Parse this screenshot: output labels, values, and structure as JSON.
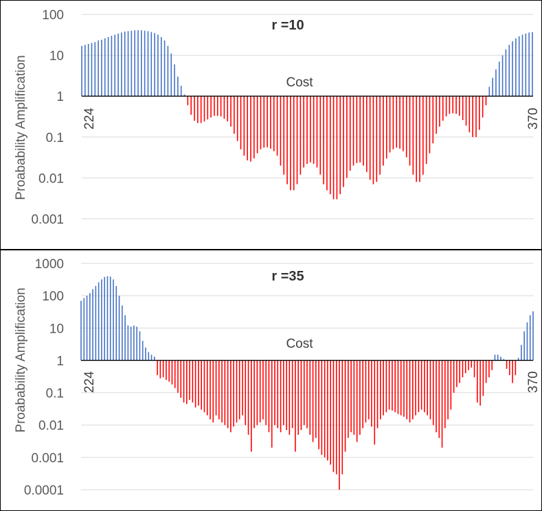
{
  "chart_data": [
    {
      "type": "bar",
      "title": "r =10",
      "xlabel": "Cost",
      "ylabel": "Proabability Amplification",
      "yscale": "log",
      "ylim": [
        0.0005,
        100
      ],
      "yticks": [
        "100",
        "10",
        "1",
        "0.1",
        "0.01",
        "0.001"
      ],
      "ytick_values": [
        100,
        10,
        1,
        0.1,
        0.01,
        0.001
      ],
      "x_start_label": "224",
      "x_end_label": "370",
      "x_start": 224,
      "x_end": 370,
      "baseline": 1,
      "colors": {
        "above": "#4472c4",
        "below": "#ff0000"
      },
      "values": [
        17,
        18,
        19,
        20,
        21,
        23,
        24,
        26,
        28,
        30,
        32,
        34,
        36,
        38,
        39,
        40,
        41,
        41,
        41,
        40,
        39,
        37,
        35,
        32,
        28,
        23,
        17,
        11,
        6,
        3,
        1.8,
        1.1,
        0.6,
        0.35,
        0.25,
        0.22,
        0.22,
        0.24,
        0.27,
        0.3,
        0.33,
        0.33,
        0.32,
        0.28,
        0.24,
        0.18,
        0.12,
        0.08,
        0.05,
        0.035,
        0.027,
        0.025,
        0.03,
        0.04,
        0.05,
        0.055,
        0.056,
        0.052,
        0.045,
        0.035,
        0.02,
        0.012,
        0.007,
        0.005,
        0.005,
        0.007,
        0.012,
        0.018,
        0.022,
        0.024,
        0.022,
        0.018,
        0.012,
        0.007,
        0.005,
        0.004,
        0.003,
        0.003,
        0.004,
        0.006,
        0.01,
        0.015,
        0.02,
        0.023,
        0.024,
        0.02,
        0.014,
        0.009,
        0.007,
        0.008,
        0.012,
        0.02,
        0.03,
        0.042,
        0.05,
        0.055,
        0.052,
        0.045,
        0.032,
        0.02,
        0.012,
        0.008,
        0.008,
        0.012,
        0.022,
        0.04,
        0.07,
        0.12,
        0.18,
        0.25,
        0.32,
        0.37,
        0.38,
        0.37,
        0.33,
        0.26,
        0.19,
        0.13,
        0.1,
        0.1,
        0.15,
        0.3,
        0.6,
        1.7,
        2.8,
        4.5,
        7,
        10,
        14,
        18,
        22,
        26,
        29,
        32,
        34,
        36,
        37
      ]
    },
    {
      "type": "bar",
      "title": "r =35",
      "xlabel": "Cost",
      "ylabel": "Proabability Amplification",
      "yscale": "log",
      "ylim": [
        7e-05,
        1000
      ],
      "yticks": [
        "1000",
        "100",
        "10",
        "1",
        "0.1",
        "0.01",
        "0.001",
        "0.0001"
      ],
      "ytick_values": [
        1000,
        100,
        10,
        1,
        0.1,
        0.01,
        0.001,
        0.0001
      ],
      "x_start_label": "224",
      "x_end_label": "370",
      "x_start": 224,
      "x_end": 370,
      "baseline": 1,
      "colors": {
        "above": "#4472c4",
        "below": "#ff0000"
      },
      "values": [
        70,
        85,
        100,
        120,
        160,
        200,
        260,
        320,
        380,
        400,
        390,
        320,
        200,
        100,
        50,
        25,
        12,
        11,
        12,
        11,
        8,
        4,
        2.5,
        1.8,
        1.5,
        1.3,
        0.35,
        0.28,
        0.3,
        0.25,
        0.22,
        0.18,
        0.14,
        0.1,
        0.07,
        0.05,
        0.045,
        0.06,
        0.05,
        0.035,
        0.04,
        0.03,
        0.025,
        0.02,
        0.015,
        0.012,
        0.02,
        0.015,
        0.012,
        0.01,
        0.008,
        0.006,
        0.009,
        0.012,
        0.015,
        0.02,
        0.01,
        0.005,
        0.0015,
        0.008,
        0.01,
        0.012,
        0.015,
        0.01,
        0.006,
        0.002,
        0.01,
        0.008,
        0.006,
        0.01,
        0.007,
        0.005,
        0.008,
        0.0015,
        0.005,
        0.007,
        0.01,
        0.008,
        0.005,
        0.003,
        0.004,
        0.0018,
        0.0012,
        0.001,
        0.0008,
        0.0006,
        0.00035,
        0.0003,
        0.0001,
        0.0003,
        0.0015,
        0.004,
        0.006,
        0.005,
        0.003,
        0.005,
        0.008,
        0.012,
        0.015,
        0.009,
        0.0025,
        0.008,
        0.015,
        0.02,
        0.025,
        0.03,
        0.028,
        0.025,
        0.022,
        0.02,
        0.018,
        0.015,
        0.012,
        0.015,
        0.02,
        0.025,
        0.03,
        0.025,
        0.02,
        0.015,
        0.01,
        0.006,
        0.004,
        0.002,
        0.008,
        0.015,
        0.03,
        0.1,
        0.15,
        0.2,
        0.3,
        0.4,
        0.5,
        0.6,
        0.3,
        0.05,
        0.04,
        0.08,
        0.2,
        0.3,
        0.5,
        1.5,
        1.5,
        1.3,
        1.1,
        0.55,
        0.35,
        0.2,
        0.35,
        1.2,
        3,
        8,
        15,
        25,
        33
      ]
    }
  ]
}
